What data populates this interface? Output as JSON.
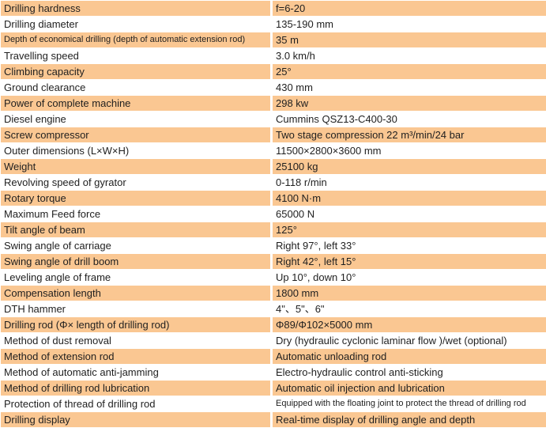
{
  "table": {
    "row_highlight_color": "#FAC792",
    "row_plain_color": "#FFFFFF",
    "divider_color": "#FFFFFF",
    "text_color": "#1F1F1F",
    "rows": [
      {
        "label": "Drilling hardness",
        "value": "f=6-20",
        "small_label": false,
        "small_value": false
      },
      {
        "label": "Drilling diameter",
        "value": "135-190 mm",
        "small_label": false,
        "small_value": false
      },
      {
        "label": "Depth of economical drilling (depth of automatic extension rod)",
        "value": "35 m",
        "small_label": true,
        "small_value": false
      },
      {
        "label": "Travelling speed",
        "value": "3.0 km/h",
        "small_label": false,
        "small_value": false
      },
      {
        "label": "Climbing capacity",
        "value": "25°",
        "small_label": false,
        "small_value": false
      },
      {
        "label": "Ground clearance",
        "value": "430 mm",
        "small_label": false,
        "small_value": false
      },
      {
        "label": "Power of complete machine",
        "value": "298 kw",
        "small_label": false,
        "small_value": false
      },
      {
        "label": "Diesel engine",
        "value": "Cummins QSZ13-C400-30",
        "small_label": false,
        "small_value": false
      },
      {
        "label": "Screw compressor",
        "value": "Two stage compression 22 m³/min/24 bar",
        "small_label": false,
        "small_value": false
      },
      {
        "label": "Outer dimensions (L×W×H)",
        "value": "11500×2800×3600 mm",
        "small_label": false,
        "small_value": false
      },
      {
        "label": "Weight",
        "value": "25100 kg",
        "small_label": false,
        "small_value": false
      },
      {
        "label": "Revolving speed of gyrator",
        "value": "0-118 r/min",
        "small_label": false,
        "small_value": false
      },
      {
        "label": "Rotary torque",
        "value": "4100 N·m",
        "small_label": false,
        "small_value": false
      },
      {
        "label": "Maximum Feed force",
        "value": "65000 N",
        "small_label": false,
        "small_value": false
      },
      {
        "label": "Tilt angle of beam",
        "value": "125°",
        "small_label": false,
        "small_value": false
      },
      {
        "label": "Swing angle of carriage",
        "value": "Right 97°, left 33°",
        "small_label": false,
        "small_value": false
      },
      {
        "label": "Swing angle of drill boom",
        "value": "Right 42°, left 15°",
        "small_label": false,
        "small_value": false
      },
      {
        "label": "Leveling angle of frame",
        "value": "Up 10°, down 10°",
        "small_label": false,
        "small_value": false
      },
      {
        "label": "Compensation length",
        "value": "1800 mm",
        "small_label": false,
        "small_value": false
      },
      {
        "label": "DTH hammer",
        "value": "4\"、5\"、6\"",
        "small_label": false,
        "small_value": false
      },
      {
        "label": "Drilling rod (Φ× length of drilling rod)",
        "value": "Φ89/Φ102×5000 mm",
        "small_label": false,
        "small_value": false
      },
      {
        "label": "Method of dust removal",
        "value": "Dry (hydraulic cyclonic laminar flow )/wet (optional)",
        "small_label": false,
        "small_value": false
      },
      {
        "label": "Method of extension rod",
        "value": "Automatic unloading rod",
        "small_label": false,
        "small_value": false
      },
      {
        "label": "Method of automatic anti-jamming",
        "value": "Electro-hydraulic control anti-sticking",
        "small_label": false,
        "small_value": false
      },
      {
        "label": "Method of drilling rod lubrication",
        "value": "Automatic oil injection and lubrication",
        "small_label": false,
        "small_value": false
      },
      {
        "label": "Protection of thread of drilling rod",
        "value": "Equipped with the floating joint to protect the thread of drilling rod",
        "small_label": false,
        "small_value": true
      },
      {
        "label": "Drilling display",
        "value": "Real-time display of drilling angle and depth",
        "small_label": false,
        "small_value": false
      }
    ]
  }
}
